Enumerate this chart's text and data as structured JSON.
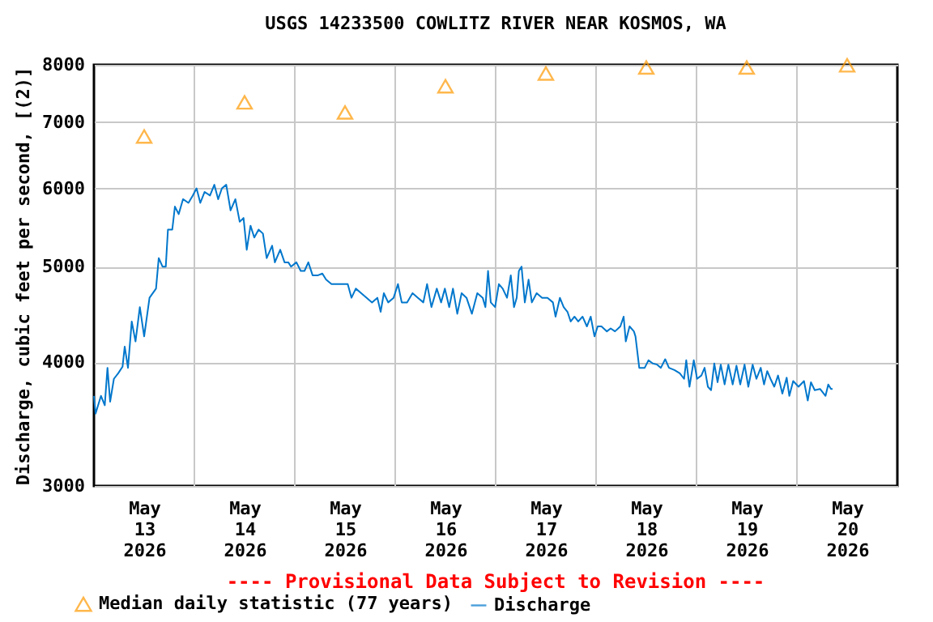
{
  "chart_data": {
    "type": "line",
    "title": "USGS 14233500 COWLITZ RIVER NEAR KOSMOS, WA",
    "ylabel": "Discharge, cubic feet per second, [(2)]",
    "annotations": [
      "---- Provisional Data Subject to Revision ----"
    ],
    "xlim": [
      "2026-05-13T00:00",
      "2026-05-21T00:00"
    ],
    "xticks": [
      {
        "value": "2026-05-13T12:00",
        "label": "May\n13\n2026"
      },
      {
        "value": "2026-05-14T12:00",
        "label": "May\n14\n2026"
      },
      {
        "value": "2026-05-15T12:00",
        "label": "May\n15\n2026"
      },
      {
        "value": "2026-05-16T12:00",
        "label": "May\n16\n2026"
      },
      {
        "value": "2026-05-17T12:00",
        "label": "May\n17\n2026"
      },
      {
        "value": "2026-05-18T12:00",
        "label": "May\n18\n2026"
      },
      {
        "value": "2026-05-19T12:00",
        "label": "May\n19\n2026"
      },
      {
        "value": "2026-05-20T12:00",
        "label": "May\n20\n2026"
      },
      {
        "value": "2026-05-14T00:00",
        "label": null
      },
      {
        "value": "2026-05-15T00:00",
        "label": null
      },
      {
        "value": "2026-05-16T00:00",
        "label": null
      },
      {
        "value": "2026-05-17T00:00",
        "label": null
      },
      {
        "value": "2026-05-18T00:00",
        "label": null
      },
      {
        "value": "2026-05-19T00:00",
        "label": null
      },
      {
        "value": "2026-05-20T00:00",
        "label": null
      }
    ],
    "ylim": [
      3000,
      8000
    ],
    "yticks": [
      3000,
      4000,
      5000,
      6000,
      7000,
      8000
    ],
    "log": "y",
    "grid": true,
    "legend": "bottom",
    "series": [
      {
        "name": "Median daily statistic (77 years)",
        "type": "scatter",
        "marker": "triangle",
        "color": "#ff9900",
        "x": [
          "2026-05-13T12:00",
          "2026-05-14T12:00",
          "2026-05-15T12:00",
          "2026-05-16T12:00",
          "2026-05-17T12:00",
          "2026-05-18T12:00",
          "2026-05-19T12:00",
          "2026-05-20T12:00"
        ],
        "values": [
          6770,
          7330,
          7160,
          7610,
          7840,
          7950,
          7950,
          7990
        ]
      },
      {
        "name": "Discharge",
        "color": "#0077cc",
        "x": [
          "2026-05-13T00:00",
          "2026-05-13T00:23",
          "2026-05-13T01:41",
          "2026-05-13T02:35",
          "2026-05-13T03:14",
          "2026-05-13T03:52",
          "2026-05-13T04:46",
          "2026-05-13T05:48",
          "2026-05-13T06:50",
          "2026-05-13T07:21",
          "2026-05-13T08:08",
          "2026-05-13T09:02",
          "2026-05-13T09:56",
          "2026-05-13T10:58",
          "2026-05-13T12:00",
          "2026-05-13T13:17",
          "2026-05-13T14:50",
          "2026-05-13T15:29",
          "2026-05-13T16:23",
          "2026-05-13T17:10",
          "2026-05-13T17:41",
          "2026-05-13T18:43",
          "2026-05-13T19:21",
          "2026-05-13T20:15",
          "2026-05-13T21:17",
          "2026-05-13T22:35",
          "2026-05-13T23:37",
          "2026-05-14T00:31",
          "2026-05-14T01:25",
          "2026-05-14T02:27",
          "2026-05-14T03:44",
          "2026-05-14T04:46",
          "2026-05-14T05:41",
          "2026-05-14T06:35",
          "2026-05-14T07:37",
          "2026-05-14T08:39",
          "2026-05-14T09:48",
          "2026-05-14T10:50",
          "2026-05-14T11:45",
          "2026-05-14T12:31",
          "2026-05-14T13:25",
          "2026-05-14T14:19",
          "2026-05-14T15:21",
          "2026-05-14T16:23",
          "2026-05-14T17:17",
          "2026-05-14T18:35",
          "2026-05-14T19:14",
          "2026-05-14T20:31",
          "2026-05-14T21:33",
          "2026-05-14T22:27",
          "2026-05-14T23:06",
          "2026-05-15T00:23",
          "2026-05-15T01:25",
          "2026-05-15T02:19",
          "2026-05-15T03:14",
          "2026-05-15T04:15",
          "2026-05-15T05:33",
          "2026-05-15T06:35",
          "2026-05-15T07:29",
          "2026-05-15T08:46",
          "2026-05-15T10:43",
          "2026-05-15T12:39",
          "2026-05-15T13:33",
          "2026-05-15T14:35",
          "2026-05-15T15:52",
          "2026-05-15T17:10",
          "2026-05-15T18:27",
          "2026-05-15T19:44",
          "2026-05-15T20:31",
          "2026-05-15T21:17",
          "2026-05-15T22:19",
          "2026-05-15T23:37",
          "2026-05-16T00:39",
          "2026-05-16T01:33",
          "2026-05-16T02:50",
          "2026-05-16T04:08",
          "2026-05-16T05:25",
          "2026-05-16T06:43",
          "2026-05-16T07:37",
          "2026-05-16T08:39",
          "2026-05-16T09:56",
          "2026-05-16T10:58",
          "2026-05-16T11:52",
          "2026-05-16T12:54",
          "2026-05-16T13:48",
          "2026-05-16T14:50",
          "2026-05-16T15:52",
          "2026-05-16T17:02",
          "2026-05-16T18:19",
          "2026-05-16T19:37",
          "2026-05-16T20:54",
          "2026-05-16T21:33",
          "2026-05-16T22:11",
          "2026-05-16T22:50",
          "2026-05-16T23:52",
          "2026-05-17T00:46",
          "2026-05-17T01:41",
          "2026-05-17T02:43",
          "2026-05-17T03:37",
          "2026-05-17T04:23",
          "2026-05-17T05:02",
          "2026-05-17T05:33",
          "2026-05-17T06:11",
          "2026-05-17T06:58",
          "2026-05-17T07:52",
          "2026-05-17T08:39",
          "2026-05-17T09:48",
          "2026-05-17T11:06",
          "2026-05-17T12:23",
          "2026-05-17T13:41",
          "2026-05-17T14:19",
          "2026-05-17T15:21",
          "2026-05-17T16:15",
          "2026-05-17T17:10",
          "2026-05-17T17:56",
          "2026-05-17T18:50",
          "2026-05-17T19:44",
          "2026-05-17T20:46",
          "2026-05-17T21:48",
          "2026-05-17T22:43",
          "2026-05-17T23:37",
          "2026-05-18T00:23",
          "2026-05-18T01:17",
          "2026-05-18T02:35",
          "2026-05-18T03:29",
          "2026-05-18T04:31",
          "2026-05-18T05:48",
          "2026-05-18T06:35",
          "2026-05-18T07:06",
          "2026-05-18T08:00",
          "2026-05-18T09:02",
          "2026-05-18T09:25",
          "2026-05-18T10:19",
          "2026-05-18T11:37",
          "2026-05-18T12:31",
          "2026-05-18T13:33",
          "2026-05-18T14:35",
          "2026-05-18T15:29",
          "2026-05-18T16:31",
          "2026-05-18T17:25",
          "2026-05-18T18:43",
          "2026-05-18T20:00",
          "2026-05-18T21:02",
          "2026-05-18T21:33",
          "2026-05-18T22:19",
          "2026-05-18T23:21",
          "2026-05-19T00:08",
          "2026-05-19T01:10",
          "2026-05-19T01:56",
          "2026-05-19T02:43",
          "2026-05-19T03:29",
          "2026-05-19T04:15",
          "2026-05-19T05:02",
          "2026-05-19T05:48",
          "2026-05-19T06:43",
          "2026-05-19T07:37",
          "2026-05-19T08:39",
          "2026-05-19T09:33",
          "2026-05-19T10:27",
          "2026-05-19T11:29",
          "2026-05-19T12:23",
          "2026-05-19T13:25",
          "2026-05-19T14:19",
          "2026-05-19T15:21",
          "2026-05-19T16:08",
          "2026-05-19T16:54",
          "2026-05-19T17:41",
          "2026-05-19T18:35",
          "2026-05-19T19:29",
          "2026-05-19T20:31",
          "2026-05-19T21:33",
          "2026-05-19T22:11",
          "2026-05-19T23:06",
          "2026-05-20T00:23",
          "2026-05-20T01:41",
          "2026-05-20T02:35",
          "2026-05-20T03:21",
          "2026-05-20T04:15",
          "2026-05-20T05:33",
          "2026-05-20T06:50",
          "2026-05-20T07:29",
          "2026-05-20T08:08",
          "2026-05-20T08:31"
        ],
        "values": [
          3700,
          3550,
          3700,
          3620,
          3950,
          3650,
          3850,
          3900,
          3960,
          4150,
          3950,
          4400,
          4200,
          4550,
          4250,
          4650,
          4750,
          5100,
          5000,
          5000,
          5450,
          5450,
          5750,
          5650,
          5850,
          5800,
          5900,
          6000,
          5800,
          5950,
          5900,
          6050,
          5850,
          6000,
          6050,
          5700,
          5850,
          5550,
          5600,
          5200,
          5500,
          5350,
          5450,
          5400,
          5100,
          5250,
          5050,
          5200,
          5050,
          5050,
          5000,
          5050,
          4950,
          4950,
          5050,
          4900,
          4900,
          4920,
          4850,
          4800,
          4800,
          4800,
          4650,
          4750,
          4700,
          4650,
          4600,
          4650,
          4500,
          4700,
          4600,
          4650,
          4800,
          4600,
          4600,
          4700,
          4650,
          4600,
          4800,
          4550,
          4750,
          4600,
          4750,
          4550,
          4750,
          4480,
          4700,
          4650,
          4480,
          4700,
          4650,
          4550,
          4950,
          4600,
          4550,
          4800,
          4750,
          4650,
          4900,
          4550,
          4650,
          4950,
          5000,
          4600,
          4850,
          4600,
          4700,
          4650,
          4650,
          4600,
          4450,
          4650,
          4550,
          4500,
          4400,
          4450,
          4400,
          4450,
          4350,
          4450,
          4250,
          4350,
          4350,
          4300,
          4330,
          4300,
          4350,
          4450,
          4200,
          4350,
          4300,
          4250,
          3950,
          3950,
          4020,
          3990,
          3980,
          3950,
          4030,
          3950,
          3930,
          3900,
          3850,
          4020,
          3780,
          4020,
          3850,
          3880,
          3950,
          3780,
          3750,
          3990,
          3820,
          3980,
          3800,
          3980,
          3800,
          3970,
          3800,
          3980,
          3780,
          3980,
          3850,
          3950,
          3800,
          3920,
          3850,
          3780,
          3880,
          3720,
          3860,
          3700,
          3830,
          3780,
          3830,
          3660,
          3820,
          3750,
          3760,
          3700,
          3800,
          3760,
          3760
        ]
      }
    ]
  }
}
